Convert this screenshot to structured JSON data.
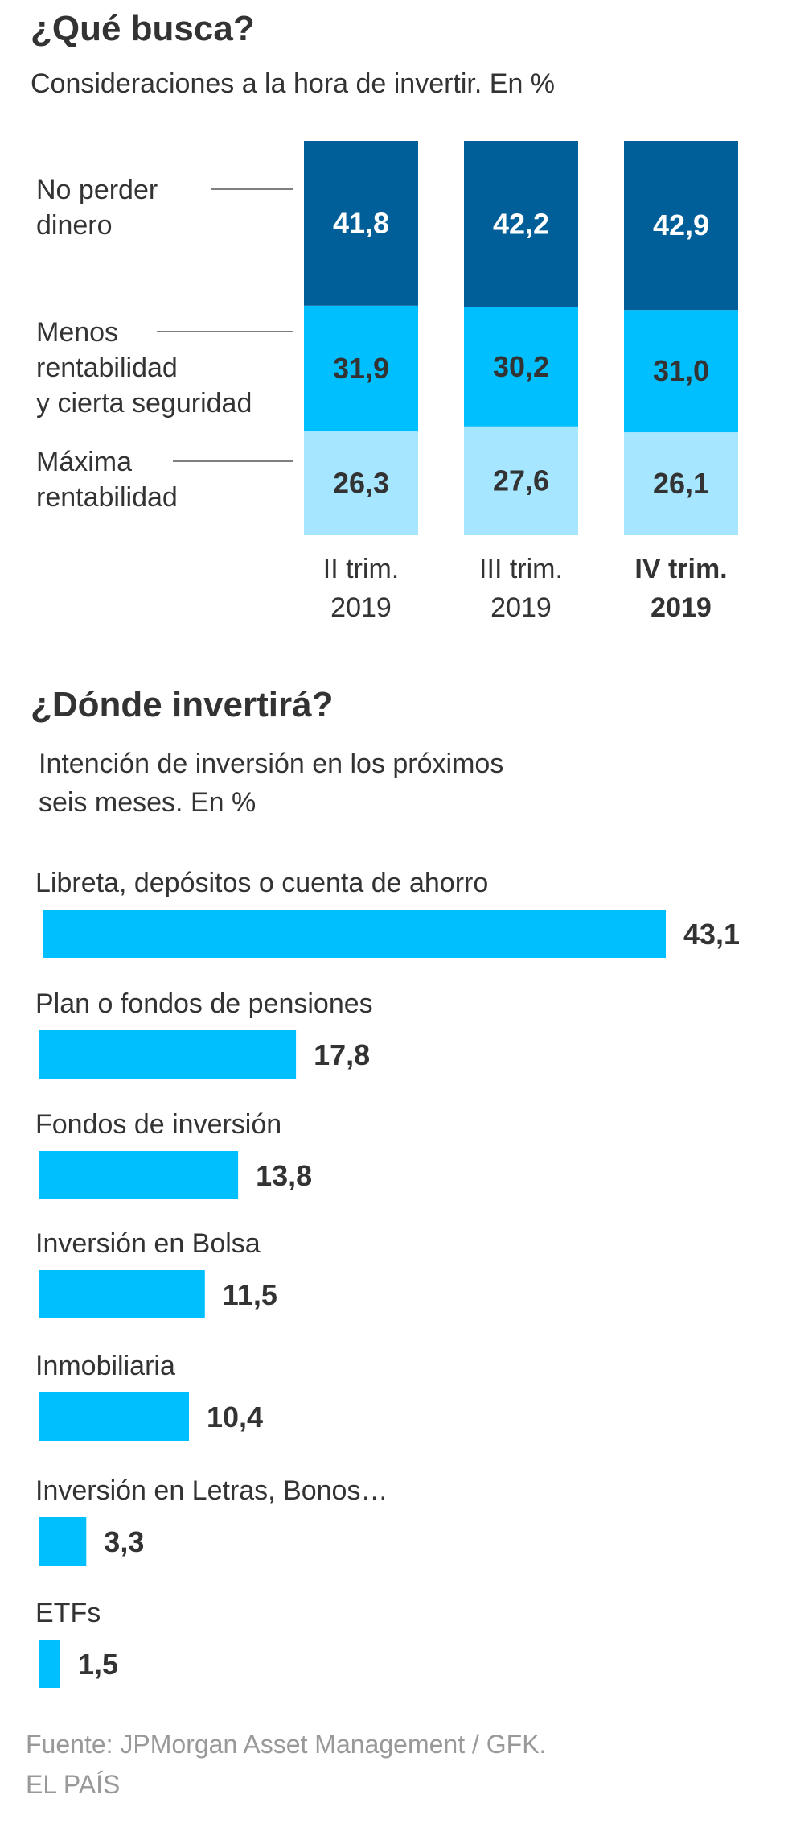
{
  "section1": {
    "title": "¿Qué busca?",
    "subtitle": "Consideraciones a la hora de invertir. En %"
  },
  "section2": {
    "title": "¿Dónde invertirá?",
    "subtitle_lines": [
      "Intención de inversión en los próximos",
      "seis meses. En %"
    ]
  },
  "footer": {
    "source": "Fuente: JPMorgan Asset Management / GFK.",
    "credit": "EL PAÍS"
  },
  "colors": {
    "dark_blue": "#005f99",
    "mid_blue": "#00bfff",
    "light_blue": "#a6e6ff",
    "text_dark": "#333333",
    "text_muted": "#999999",
    "leader_line": "#555555"
  },
  "chart_data": [
    {
      "type": "bar",
      "stacked": true,
      "title": "¿Qué busca?",
      "subtitle": "Consideraciones a la hora de invertir. En %",
      "categories": [
        {
          "lines": [
            "II trim.",
            "2019"
          ],
          "bold": false
        },
        {
          "lines": [
            "III trim.",
            "2019"
          ],
          "bold": false
        },
        {
          "lines": [
            "IV trim.",
            "2019"
          ],
          "bold": true
        }
      ],
      "series": [
        {
          "name": "Máxima rentabilidad",
          "label_lines": [
            "Máxima",
            "rentabilidad"
          ],
          "color_key": "light_blue",
          "values": [
            26.3,
            27.6,
            26.1
          ],
          "labels": [
            "26,3",
            "27,6",
            "26,1"
          ]
        },
        {
          "name": "Menos rentabilidad y cierta seguridad",
          "label_lines": [
            "Menos",
            "rentabilidad",
            "y cierta seguridad"
          ],
          "color_key": "mid_blue",
          "values": [
            31.9,
            30.2,
            31.0
          ],
          "labels": [
            "31,9",
            "30,2",
            "31,0"
          ]
        },
        {
          "name": "No perder dinero",
          "label_lines": [
            "No perder",
            "dinero"
          ],
          "color_key": "dark_blue",
          "values": [
            41.8,
            42.2,
            42.9
          ],
          "labels": [
            "41,8",
            "42,2",
            "42,9"
          ]
        }
      ],
      "ylim": [
        0,
        100
      ]
    },
    {
      "type": "bar",
      "orientation": "horizontal",
      "title": "¿Dónde invertirá?",
      "subtitle": "Intención de inversión en los próximos seis meses. En %",
      "categories": [
        "Libreta, depósitos o cuenta de ahorro",
        "Plan o fondos de pensiones",
        "Fondos de inversión",
        "Inversión en Bolsa",
        "Inmobiliaria",
        "Inversión en Letras, Bonos…",
        "ETFs"
      ],
      "values": [
        43.1,
        17.8,
        13.8,
        11.5,
        10.4,
        3.3,
        1.5
      ],
      "labels": [
        "43,1",
        "17,8",
        "13,8",
        "11,5",
        "10,4",
        "3,3",
        "1,5"
      ],
      "color_key": "mid_blue"
    }
  ]
}
